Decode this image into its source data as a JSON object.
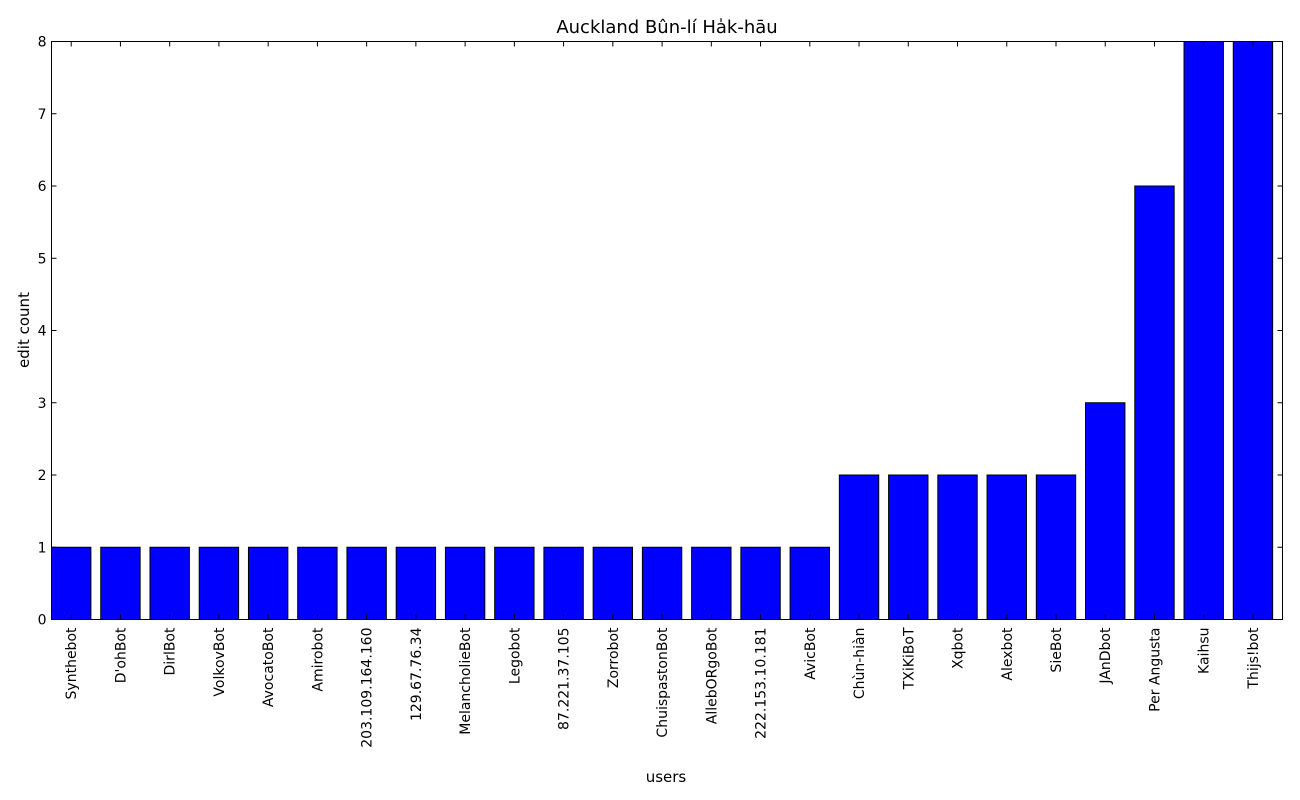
{
  "chart_data": {
    "type": "bar",
    "title": "Auckland Bûn-lí Ha̍k-hāu",
    "xlabel": "users",
    "ylabel": "edit count",
    "ylim": [
      0,
      8
    ],
    "yticks": [
      0,
      1,
      2,
      3,
      4,
      5,
      6,
      7,
      8
    ],
    "bar_color": "#0000ff",
    "edge_color": "#000000",
    "grid": false,
    "categories": [
      "Synthebot",
      "D'ohBot",
      "DirlBot",
      "VolkovBot",
      "AvocatoBot",
      "Amirobot",
      "203.109.164.160",
      "129.67.76.34",
      "MelancholieBot",
      "Legobot",
      "87.221.37.105",
      "Zorrobot",
      "ChuispastonBot",
      "AllebORgoBot",
      "222.153.10.181",
      "AvicBot",
      "Chùn-hiàn",
      "TXiKiBoT",
      "Xqbot",
      "Alexbot",
      "SieBot",
      "JAnDbot",
      "Per Angusta",
      "Kaihsu",
      "Thijs!bot"
    ],
    "values": [
      1,
      1,
      1,
      1,
      1,
      1,
      1,
      1,
      1,
      1,
      1,
      1,
      1,
      1,
      1,
      1,
      2,
      2,
      2,
      2,
      2,
      3,
      6,
      8,
      8
    ]
  }
}
